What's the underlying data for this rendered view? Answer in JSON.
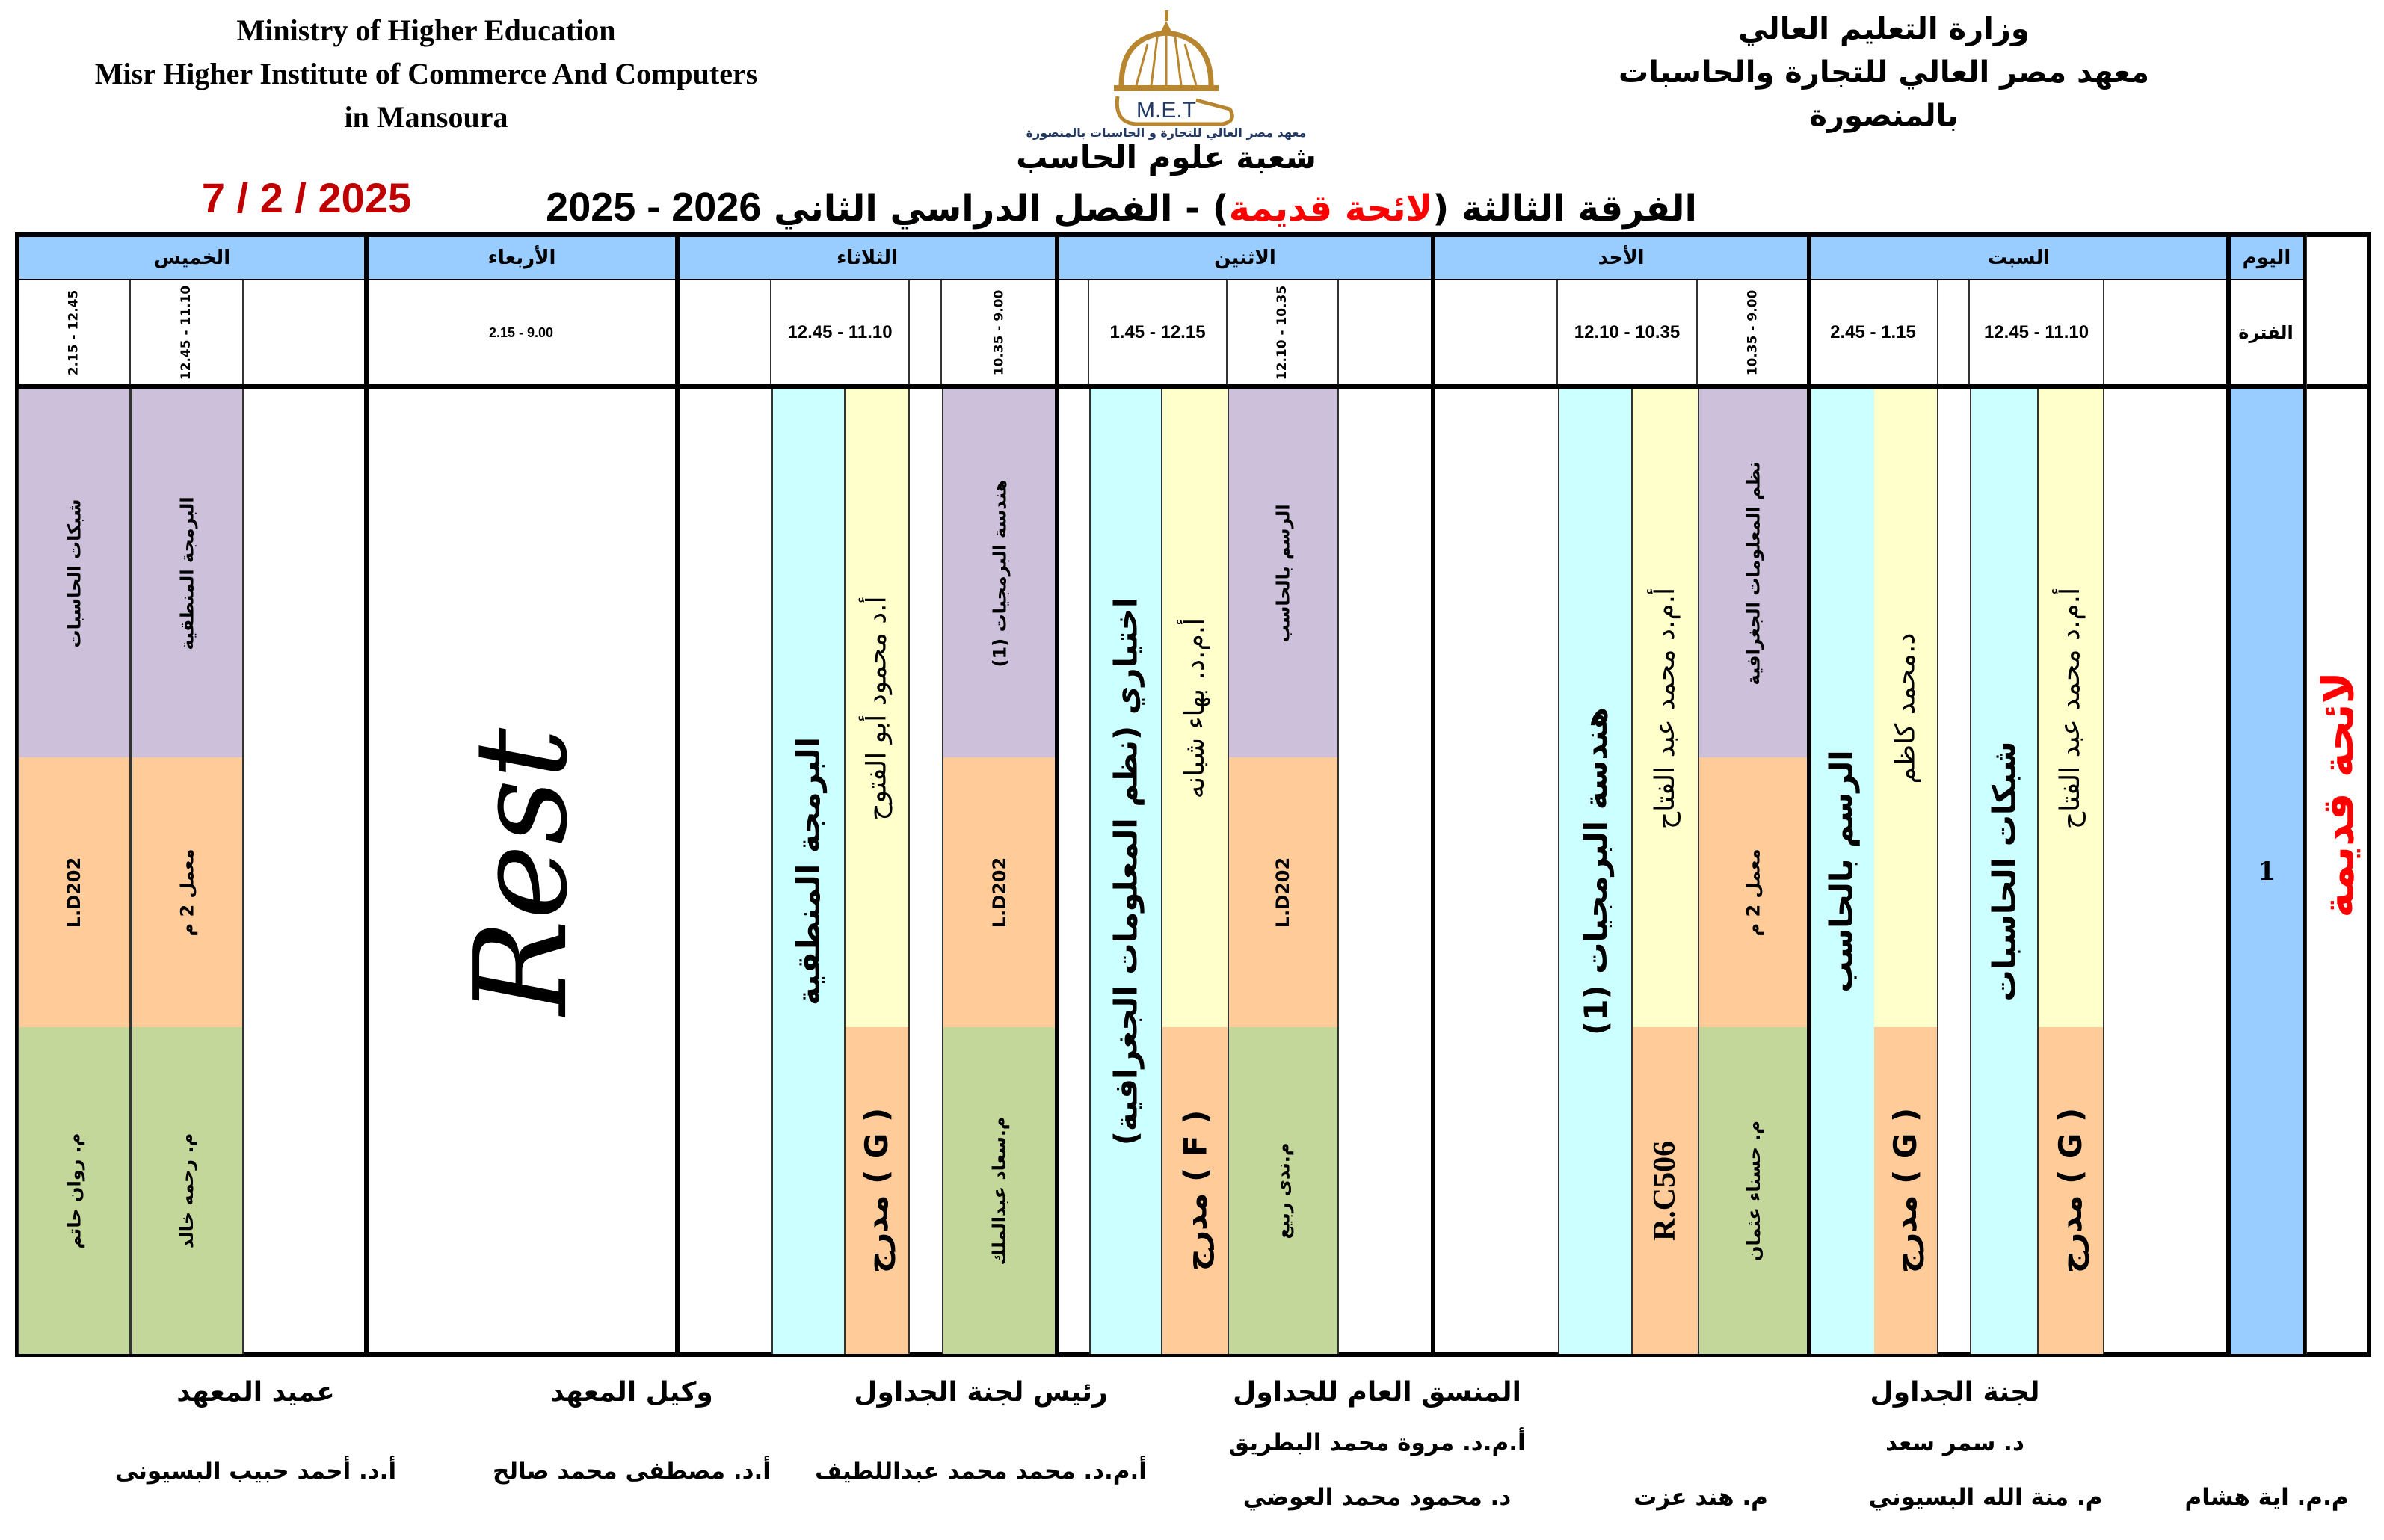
{
  "header": {
    "en_lines": [
      "Ministry of Higher Education",
      "Misr Higher Institute of Commerce And Computers",
      "in Mansoura"
    ],
    "ar_lines": [
      "وزارة التعليم العالي",
      "معهد مصر العالي للتجارة والحاسبات",
      "بالمنصورة"
    ],
    "logo_text": "M.E.T",
    "logo_caption": "معهد مصر العالي للتجارة و الحاسبات بالمنصورة",
    "department": "شعبة علوم الحاسب",
    "date": "7 / 2 / 2025",
    "title": {
      "level": "الفرقة الثالثة",
      "bylaw": "لائحة قديمة",
      "semester": "- الفصل الدراسي الثاني",
      "years": "2025 - 2026"
    },
    "colors": {
      "date": "#c00000",
      "bylaw": "#ff0000",
      "logo_gold": "#b8862e",
      "logo_navy": "#1f3864"
    }
  },
  "table": {
    "day_label": "اليوم",
    "period_label": "الفترة",
    "period_number": "1",
    "side_label": "لائحة قديمة",
    "colors": {
      "header": "#99ccff",
      "lecture_course": "#ccffff",
      "lecture_instructor": "#ffffcc",
      "room": "#ffcc99",
      "section_course": "#ccc0da",
      "section_assistant": "#c4d79b"
    },
    "days": {
      "sat": {
        "name": "السبت",
        "times": [
          "12.45 - 11.10",
          "2.45 - 1.15"
        ],
        "lectures": [
          {
            "course": "شبكات الحاسبات",
            "instructor": "أ.م.د محمد عبد الفتاح",
            "room": "مدرج ( G )"
          },
          {
            "course": "الرسم بالحاسب",
            "instructor": "د.محمد كاظم",
            "room": "مدرج ( G )"
          }
        ]
      },
      "sun": {
        "name": "الأحد",
        "times": [
          "10.35 - 9.00",
          "12.10 - 10.35"
        ],
        "section": {
          "course": "نظم المعلومات الجغرافية",
          "room": "معمل 2 م",
          "assistant": "م. حسناء عثمان"
        },
        "lecture": {
          "course": "هندسة البرمجيات (1)",
          "instructor": "أ.م.د محمد عبد الفتاح",
          "room": "R.C506"
        }
      },
      "mon": {
        "name": "الاثنين",
        "times": [
          "12.10 - 10.35",
          "1.45 - 12.15"
        ],
        "section": {
          "course": "الرسم بالحاسب",
          "room": "L.D202",
          "assistant": "م.ندى ربيع"
        },
        "lecture": {
          "course": "اختياري (نظم المعلومات الجغرافية)",
          "instructor": "أ.م.د. بهاء شبانه",
          "room": "مدرج ( F )"
        }
      },
      "tue": {
        "name": "الثلاثاء",
        "times": [
          "10.35 - 9.00",
          "12.45 - 11.10"
        ],
        "section": {
          "course": "هندسة البرمجيات (1)",
          "room": "L.D202",
          "assistant": "م.سعاد عبدالملك"
        },
        "lecture": {
          "course": "البرمجة المنطقية",
          "instructor": "أ.د محمود أبو الفتوح",
          "room": "مدرج ( G )"
        }
      },
      "wed": {
        "name": "الأربعاء",
        "times": [
          "2.15 - 9.00"
        ],
        "note": "Rest"
      },
      "thu": {
        "name": "الخميس",
        "times": [
          "12.45 - 11.10",
          "2.15 - 12.45"
        ],
        "sections": [
          {
            "course": "البرمجة المنطقية",
            "room": "معمل 2 م",
            "assistant": "م. رحمه خالد"
          },
          {
            "course": "شبكات الحاسبات",
            "room": "L.D202",
            "assistant": "م. روان حاتم"
          }
        ]
      }
    }
  },
  "footer": {
    "committee": {
      "title": "لجنة الجداول",
      "head": "د. سمر سعد",
      "members": [
        "م.م. اية هشام",
        "م. منة الله البسيوني",
        "م. هند عزت"
      ]
    },
    "coordinator": {
      "title": "المنسق العام للجداول",
      "names": [
        "أ.م.د. مروة محمد البطريق",
        "د. محمود محمد العوضي"
      ]
    },
    "committee_head": {
      "title": "رئيس لجنة الجداول",
      "name": "أ.م.د. محمد محمد عبداللطيف"
    },
    "vice_dean": {
      "title": "وكيل المعهد",
      "name": "أ.د. مصطفى محمد صالح"
    },
    "dean": {
      "title": "عميد المعهد",
      "name": "أ.د. أحمد حبيب البسيونى"
    }
  }
}
